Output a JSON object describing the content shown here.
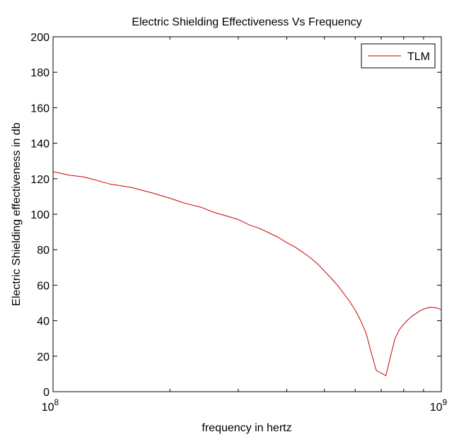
{
  "chart_data": {
    "type": "line",
    "title": "Electric Shielding Effectiveness Vs Frequency",
    "xlabel": "frequency in hertz",
    "ylabel": "Electric Shielding effectiveness in db",
    "x_scale": "log",
    "xlim": [
      100000000,
      1000000000
    ],
    "ylim": [
      0,
      200
    ],
    "x_ticks": [
      {
        "value": 100000000,
        "base": "10",
        "exp": "8"
      },
      {
        "value": 1000000000,
        "base": "10",
        "exp": "9"
      }
    ],
    "y_ticks": [
      "0",
      "20",
      "40",
      "60",
      "80",
      "100",
      "120",
      "140",
      "160",
      "180",
      "200"
    ],
    "grid": false,
    "legend": {
      "position": "top-right"
    },
    "series": [
      {
        "name": "TLM",
        "color": "#cc0000",
        "x": [
          100000000,
          110000000,
          120000000,
          130000000,
          140000000,
          150000000,
          160000000,
          180000000,
          200000000,
          220000000,
          240000000,
          260000000,
          280000000,
          300000000,
          320000000,
          340000000,
          360000000,
          380000000,
          400000000,
          420000000,
          440000000,
          460000000,
          480000000,
          500000000,
          520000000,
          540000000,
          560000000,
          580000000,
          600000000,
          620000000,
          640000000,
          660000000,
          680000000,
          700000000,
          720000000,
          740000000,
          760000000,
          780000000,
          800000000,
          820000000,
          840000000,
          860000000,
          880000000,
          900000000,
          920000000,
          940000000,
          960000000,
          980000000,
          1000000000
        ],
        "y": [
          124,
          122,
          121,
          119,
          117,
          116,
          115,
          112,
          109,
          106,
          104,
          101,
          99,
          97,
          94,
          92,
          89.5,
          87,
          84,
          81.5,
          78.5,
          75.5,
          72,
          68,
          64,
          60,
          55.5,
          51,
          46,
          40,
          33,
          22,
          12,
          10.5,
          9,
          20,
          30,
          35,
          38,
          40.5,
          42.5,
          44,
          45.5,
          46.5,
          47.2,
          47.6,
          47.4,
          47,
          46.2
        ]
      }
    ]
  }
}
